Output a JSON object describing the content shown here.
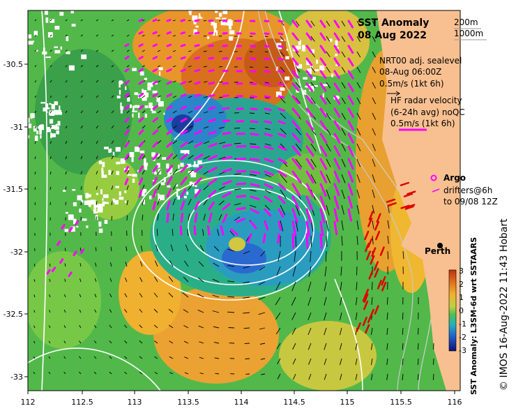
{
  "map": {
    "title_line1": "SST Anomaly",
    "title_line2": "08 Aug 2022",
    "isobath_200": "200m",
    "isobath_1000": "1000m",
    "sealevel_title": "NRT00 adj. sealevel",
    "sealevel_time": "08-Aug 06:00Z",
    "sealevel_scale": "0.5m/s (1kt 6h)",
    "hf_title": "HF radar velocity",
    "hf_avg": "(6-24h avg) noQC",
    "hf_scale": "0.5m/s (1kt 6h)",
    "argo_label": "Argo",
    "drifters_label": "drifters@6h",
    "drifters_time": "to 09/08 12Z",
    "city_label": "Perth",
    "colorbar_title": "SST Anomaly: L3SM-6d wrt SSTAARS",
    "credit": "© IMOS 16-Aug-2022 11:43 Hobart",
    "x_ticks": [
      "112",
      "112.5",
      "113",
      "113.5",
      "114",
      "114.5",
      "115",
      "115.5",
      "116"
    ],
    "y_ticks": [
      "-30.5",
      "-31",
      "-31.5",
      "-32",
      "-32.5",
      "-33"
    ],
    "colorbar_ticks": [
      "3",
      "2",
      "1",
      "0",
      "-1",
      "-2",
      "-3"
    ],
    "colors": {
      "land": "#f8c090",
      "sealevel_arrows": "#000000",
      "hf_arrows": "#ff00ff",
      "drifter_arrows": "#e00000",
      "contours": "#ffffff"
    }
  },
  "chart_data": {
    "type": "heatmap",
    "title": "SST Anomaly 08 Aug 2022",
    "colorbar_label": "SST Anomaly: L3SM-6d wrt SSTAARS",
    "xlim": [
      112,
      116.05
    ],
    "ylim": [
      -33.1,
      -30.1
    ],
    "clim": [
      -3,
      3
    ],
    "features": [
      {
        "name": "cold-eddy",
        "lon": 114.0,
        "lat": -31.95,
        "anomaly": -1.5
      },
      {
        "name": "warm-north",
        "lon": 114.1,
        "lat": -30.6,
        "anomaly": 2.5
      },
      {
        "name": "warm-southwest",
        "lon": 113.6,
        "lat": -32.75,
        "anomaly": 1.6
      },
      {
        "name": "warm-coastal",
        "lon": 115.5,
        "lat": -31.3,
        "anomaly": 1.3
      }
    ],
    "perth": {
      "lon": 115.86,
      "lat": -31.95
    }
  }
}
